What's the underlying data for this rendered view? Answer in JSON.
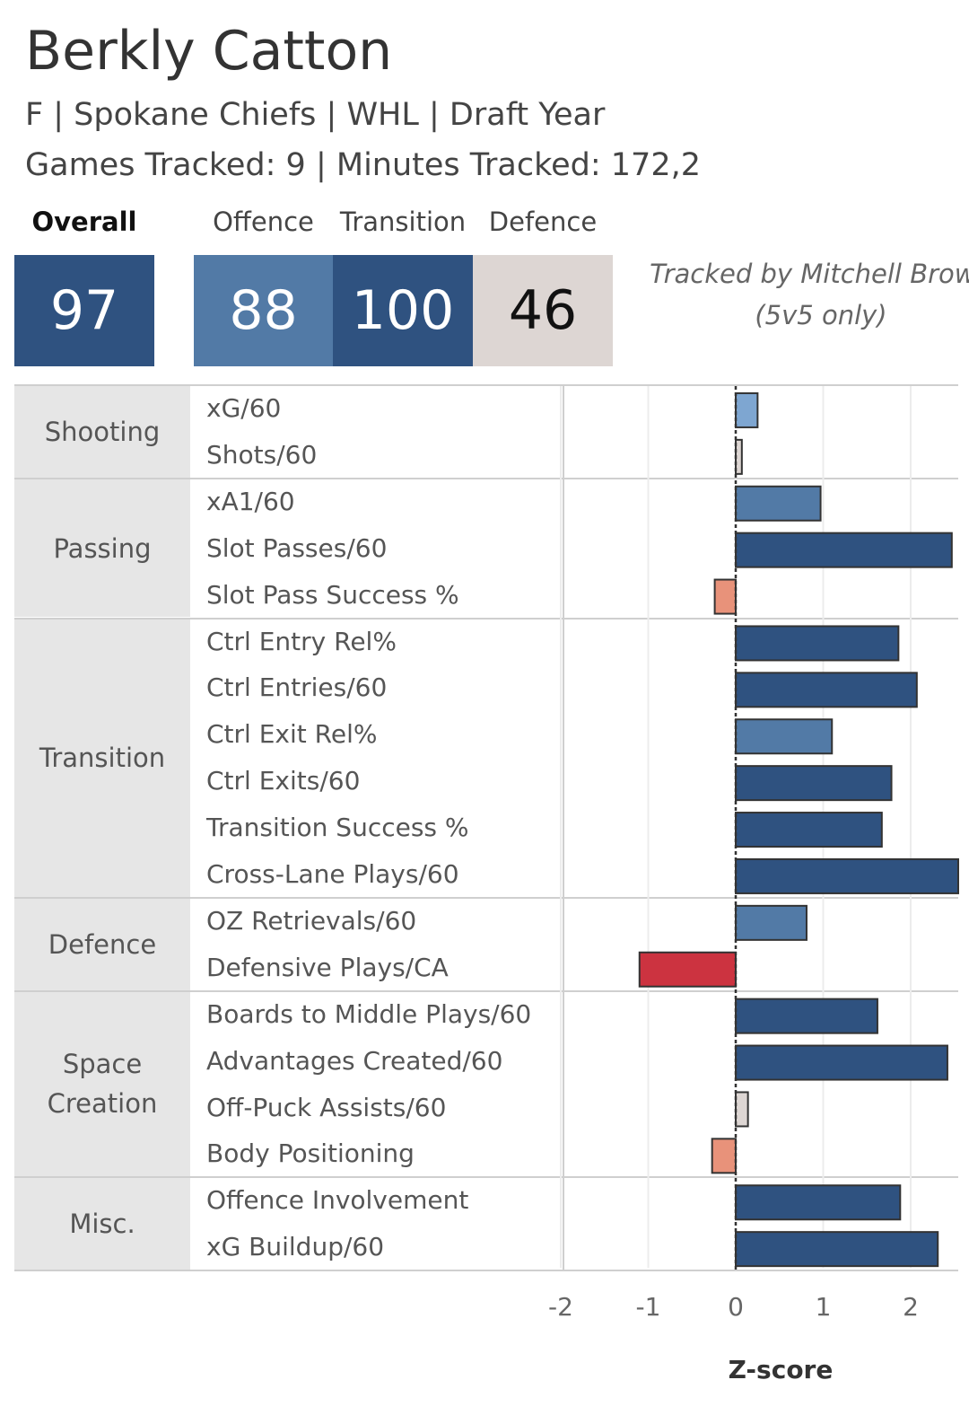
{
  "header": {
    "player_name": "Berkly Catton",
    "subtitle": "F | Spokane Chiefs | WHL | Draft Year",
    "games_line": "Games Tracked: 9 | Minutes Tracked: 172,2",
    "credit_line1": "Tracked by Mitchell Brown",
    "credit_line2": "(5v5 only)"
  },
  "scores": {
    "overall_label": "Overall",
    "overall_value": "97",
    "offence_label": "Offence",
    "offence_value": "88",
    "transition_label": "Transition",
    "transition_value": "100",
    "defence_label": "Defence",
    "defence_value": "46"
  },
  "colors": {
    "dark_blue": "#2f5280",
    "mid_blue": "#527aa6",
    "light_blue": "#7ea6d1",
    "neutral": "#ddd6d3",
    "salmon": "#e8927a",
    "red": "#cc3340"
  },
  "chart_data": {
    "type": "bar",
    "orientation": "horizontal",
    "xlabel": "Z-score",
    "xlim": [
      -2,
      2.5
    ],
    "xticks": [
      "-2",
      "-1",
      "0",
      "1",
      "2"
    ],
    "groups": [
      {
        "name": "Shooting",
        "metrics": [
          {
            "label": "xG/60",
            "value": 0.25,
            "color": "light_blue"
          },
          {
            "label": "Shots/60",
            "value": 0.07,
            "color": "neutral"
          }
        ]
      },
      {
        "name": "Passing",
        "metrics": [
          {
            "label": "xA1/60",
            "value": 0.97,
            "color": "mid_blue"
          },
          {
            "label": "Slot Passes/60",
            "value": 2.47,
            "color": "dark_blue"
          },
          {
            "label": "Slot Pass Success %",
            "value": -0.24,
            "color": "salmon"
          }
        ]
      },
      {
        "name": "Transition",
        "metrics": [
          {
            "label": "Ctrl Entry Rel%",
            "value": 1.86,
            "color": "dark_blue"
          },
          {
            "label": "Ctrl Entries/60",
            "value": 2.07,
            "color": "dark_blue"
          },
          {
            "label": "Ctrl Exit Rel%",
            "value": 1.1,
            "color": "mid_blue"
          },
          {
            "label": "Ctrl Exits/60",
            "value": 1.78,
            "color": "dark_blue"
          },
          {
            "label": "Transition Success %",
            "value": 1.67,
            "color": "dark_blue"
          },
          {
            "label": "Cross-Lane Plays/60",
            "value": 2.6,
            "color": "dark_blue"
          }
        ]
      },
      {
        "name": "Defence",
        "metrics": [
          {
            "label": "OZ Retrievals/60",
            "value": 0.81,
            "color": "mid_blue"
          },
          {
            "label": "Defensive Plays/CA",
            "value": -1.1,
            "color": "red"
          }
        ]
      },
      {
        "name": "Space Creation",
        "metrics": [
          {
            "label": "Boards to Middle Plays/60",
            "value": 1.62,
            "color": "dark_blue"
          },
          {
            "label": "Advantages Created/60",
            "value": 2.42,
            "color": "dark_blue"
          },
          {
            "label": "Off-Puck Assists/60",
            "value": 0.14,
            "color": "neutral"
          },
          {
            "label": "Body Positioning",
            "value": -0.27,
            "color": "salmon"
          }
        ]
      },
      {
        "name": "Misc.",
        "metrics": [
          {
            "label": "Offence Involvement",
            "value": 1.88,
            "color": "dark_blue"
          },
          {
            "label": "xG Buildup/60",
            "value": 2.31,
            "color": "dark_blue"
          }
        ]
      }
    ]
  }
}
